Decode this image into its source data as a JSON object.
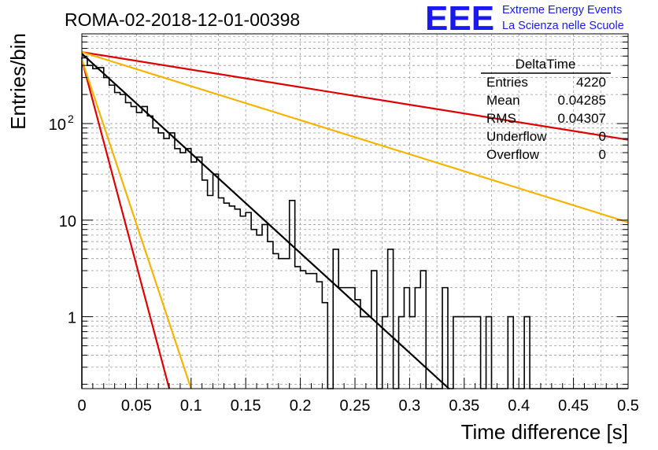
{
  "chart_data": {
    "type": "line",
    "title": "ROMA-02-2018-12-01-00398",
    "xlabel": "Time difference [s]",
    "ylabel": "Entries/bin",
    "xlim": [
      0,
      0.5
    ],
    "ylim": [
      0.18,
      850
    ],
    "yscale": "log",
    "grid": true,
    "x_ticks": [
      "0",
      "0.05",
      "0.1",
      "0.15",
      "0.2",
      "0.25",
      "0.3",
      "0.35",
      "0.4",
      "0.45",
      "0.5"
    ],
    "y_ticks": [
      {
        "value": 1,
        "label": "1",
        "exp": ""
      },
      {
        "value": 10,
        "label": "10",
        "exp": ""
      },
      {
        "value": 100,
        "label": "10",
        "exp": "2"
      }
    ],
    "histogram": {
      "name": "DeltaTime",
      "bin_width": 0.005,
      "values": [
        480,
        400,
        370,
        380,
        300,
        250,
        210,
        200,
        165,
        150,
        130,
        150,
        120,
        90,
        80,
        70,
        80,
        55,
        50,
        55,
        40,
        45,
        26,
        18,
        30,
        17,
        15,
        14,
        13,
        11,
        12,
        8,
        7,
        9,
        6,
        4.5,
        4,
        4,
        16,
        3.3,
        3,
        2.8,
        2.8,
        2.3,
        1.4,
        0,
        5,
        2,
        2,
        2,
        1.5,
        1,
        1,
        3,
        0,
        1,
        5,
        0,
        1,
        2,
        1,
        2,
        3,
        0,
        0,
        0,
        2,
        0,
        1,
        1,
        1,
        1,
        1,
        0,
        1,
        0,
        0,
        0,
        1,
        0,
        0,
        1,
        0,
        0,
        0,
        0,
        0,
        0,
        0,
        0,
        0,
        0,
        0,
        0,
        0,
        0,
        0,
        0,
        0,
        0
      ]
    },
    "series": [
      {
        "color": "#000000",
        "points": [
          [
            0,
            530
          ],
          [
            0.336,
            0.18
          ]
        ]
      },
      {
        "color": "#dd0000",
        "points": [
          [
            0,
            550
          ],
          [
            0.5,
            68
          ]
        ]
      },
      {
        "color": "#f5b400",
        "points": [
          [
            0,
            550
          ],
          [
            0.5,
            9.5
          ]
        ]
      },
      {
        "color": "#dd0000",
        "points": [
          [
            0,
            460
          ],
          [
            0.08,
            0.18
          ]
        ]
      },
      {
        "color": "#f5b400",
        "points": [
          [
            0,
            460
          ],
          [
            0.1,
            0.18
          ]
        ]
      }
    ],
    "stats": {
      "title": "DeltaTime",
      "rows": [
        {
          "label": "Entries",
          "value": "4220"
        },
        {
          "label": "Mean",
          "value": "0.04285"
        },
        {
          "label": "RMS",
          "value": "0.04307"
        },
        {
          "label": "Underflow",
          "value": "0"
        },
        {
          "label": "Overflow",
          "value": "0"
        }
      ]
    }
  },
  "logo": {
    "text": "EEE",
    "line1": "Extreme Energy Events",
    "line2": "La Scienza nelle Scuole",
    "color": "#1a1aee"
  }
}
